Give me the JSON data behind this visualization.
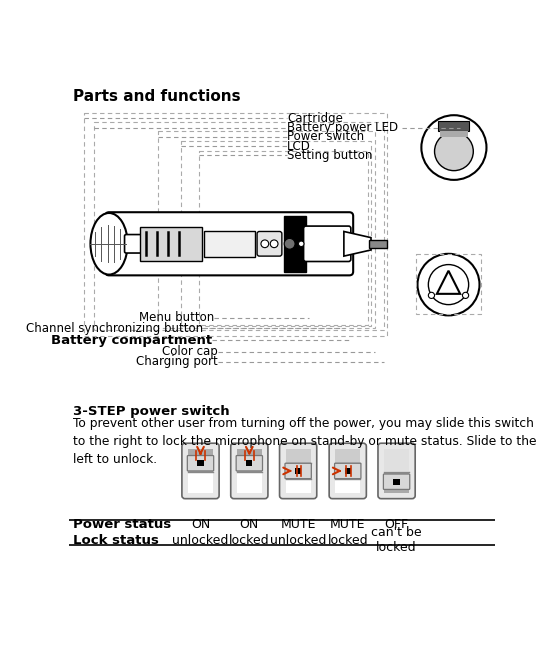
{
  "title": "Parts and functions",
  "title_fontsize": 11,
  "bg_color": "#ffffff",
  "section2_title": "3-STEP power switch",
  "section2_body": "To prevent other user from turning off the power, you may slide this switch\nto the right to lock the microphone on stand-by or mute status. Slide to the\nleft to unlock.",
  "power_statuses": [
    "ON",
    "ON",
    "MUTE",
    "MUTE",
    "OFF"
  ],
  "lock_statuses": [
    "unlocked",
    "locked",
    "unlocked",
    "locked",
    "can't be\nlocked"
  ],
  "switch_positions": [
    "top",
    "top",
    "middle",
    "middle",
    "bottom"
  ],
  "text_color": "#000000",
  "dashed_color": "#999999",
  "label_font": 8.5
}
